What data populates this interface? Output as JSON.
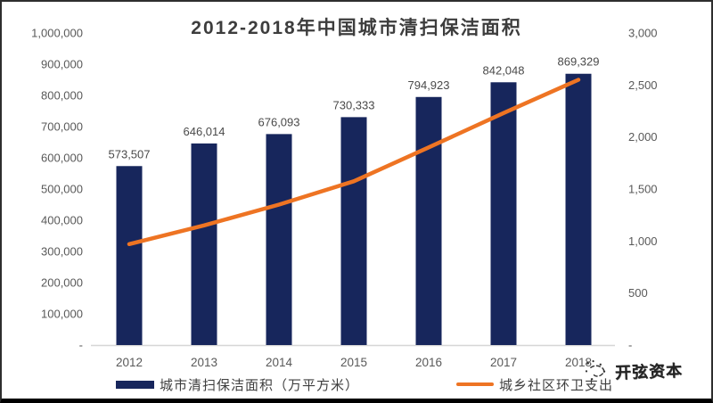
{
  "title": "2012-2018年中国城市清扫保洁面积",
  "watermark": {
    "text": "开弦资本"
  },
  "colors": {
    "bar": "#17265c",
    "line": "#ee7423",
    "axis_text": "#595959",
    "value_label_text": "#4a4a4a",
    "title_text": "#3d3d3d",
    "baseline": "#d6d6d6"
  },
  "legend": {
    "bar_label": "城市清扫保洁面积（万平方米）",
    "line_label": "城乡社区环卫支出"
  },
  "chart_data": {
    "type": "bar",
    "subtype": "combo-bar-line-dual-axis",
    "title": "2012-2018年中国城市清扫保洁面积",
    "categories": [
      "2012",
      "2013",
      "2014",
      "2015",
      "2016",
      "2017",
      "2018"
    ],
    "series": [
      {
        "name": "城市清扫保洁面积（万平方米）",
        "type": "bar",
        "y_axis": "left",
        "values": [
          573507,
          646014,
          676093,
          730333,
          794923,
          842048,
          869329
        ],
        "data_labels": [
          "573,507",
          "646,014",
          "676,093",
          "730,333",
          "794,923",
          "842,048",
          "869,329"
        ]
      },
      {
        "name": "城乡社区环卫支出",
        "type": "line",
        "y_axis": "right",
        "values": [
          970,
          1150,
          1350,
          1575,
          1900,
          2230,
          2550
        ]
      }
    ],
    "left_axis": {
      "min": 0,
      "max": 1000000,
      "step": 100000,
      "tick_labels_top_to_bottom": [
        "1,000,000",
        "900,000",
        "800,000",
        "700,000",
        "600,000",
        "500,000",
        "400,000",
        "300,000",
        "200,000",
        "100,000",
        "-"
      ]
    },
    "right_axis": {
      "min": 0,
      "max": 3000,
      "step": 500,
      "tick_labels_top_to_bottom": [
        "3,000",
        "2,500",
        "2,000",
        "1,500",
        "1,000",
        "500",
        "-"
      ]
    },
    "grid": false,
    "legend_position": "bottom"
  }
}
